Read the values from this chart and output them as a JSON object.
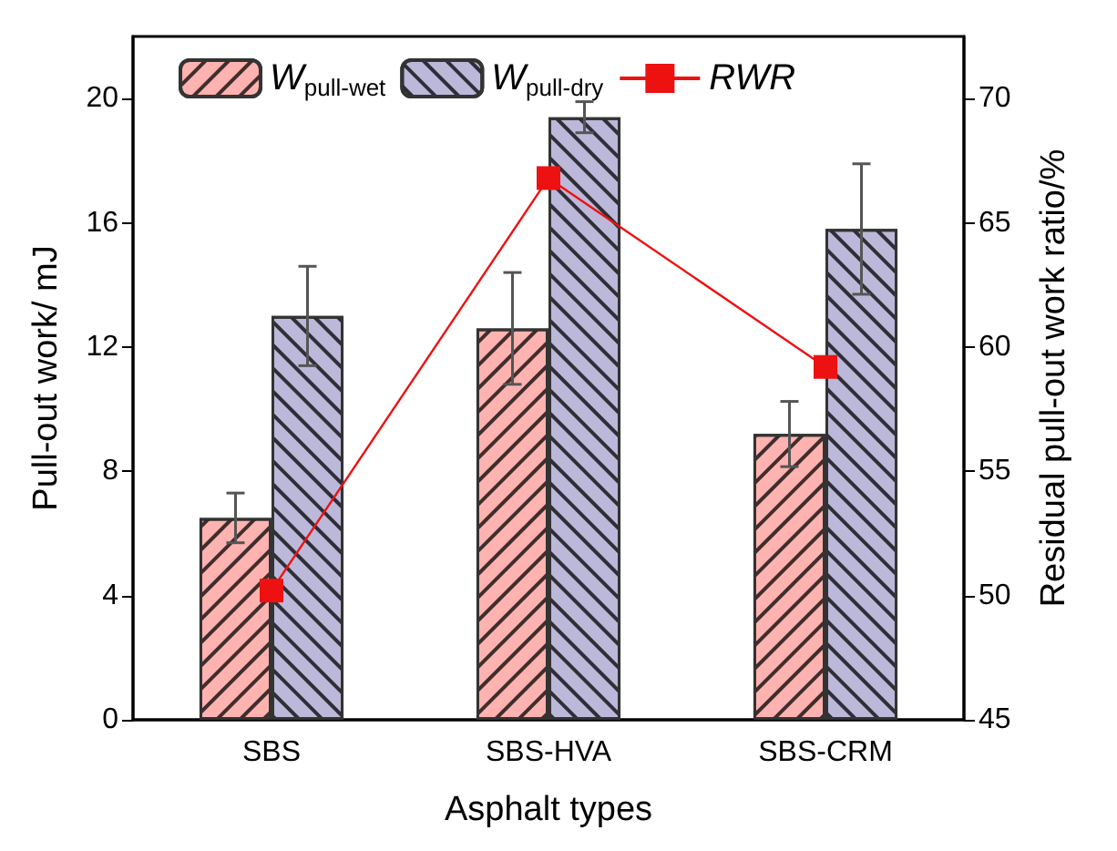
{
  "chart_data": {
    "type": "bar",
    "categories": [
      "SBS",
      "SBS-HVA",
      "SBS-CRM"
    ],
    "xlabel": "Asphalt types",
    "ylabel": "Pull-out work/ mJ",
    "y2label": "Residual pull-out work ratio/%",
    "ylim": [
      0,
      22
    ],
    "yticks": [
      0,
      4,
      8,
      12,
      16,
      20
    ],
    "y2lim": [
      45,
      72.5
    ],
    "y2ticks": [
      45,
      50,
      55,
      60,
      65,
      70
    ],
    "legend": "top left",
    "grid": false,
    "series": [
      {
        "name": "W$_{pull-wet}$",
        "color": "#ffb3b0",
        "values": [
          6.5,
          12.6,
          9.2
        ],
        "errors": [
          0.8,
          1.8,
          1.05
        ]
      },
      {
        "name": "W$_{pull-dry}$",
        "color": "#bcb8da",
        "values": [
          13.0,
          19.4,
          15.8
        ],
        "errors": [
          1.6,
          0.5,
          2.1
        ]
      },
      {
        "name": "RWR",
        "type": "line",
        "axis": "y2",
        "color": "#ee1111",
        "marker": "square",
        "values": [
          50.2,
          66.8,
          59.2
        ]
      }
    ]
  }
}
